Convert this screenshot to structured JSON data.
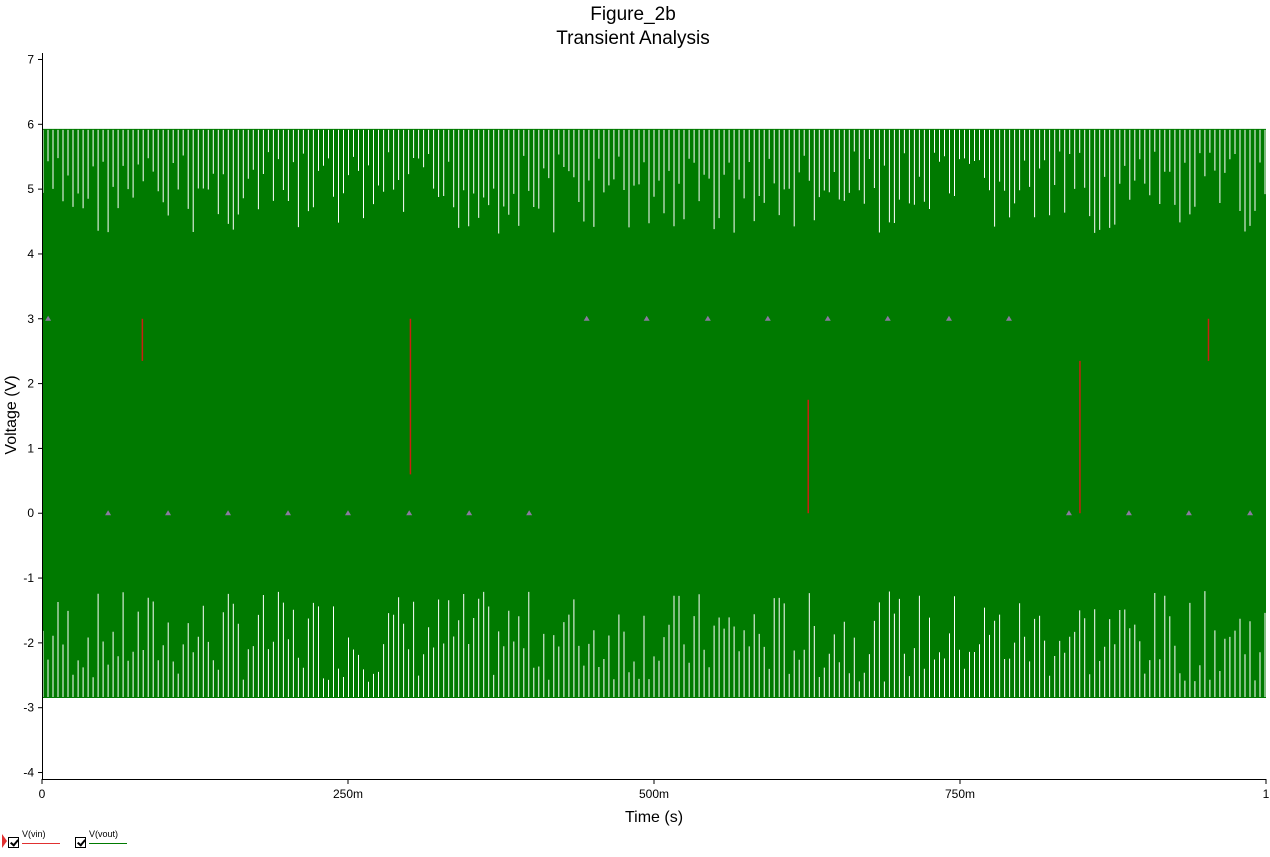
{
  "colors": {
    "vin": "#c8200f",
    "vout": "#007a00",
    "marker": "#8a7aa0"
  },
  "chart_data": {
    "type": "line",
    "title": "Figure_2b",
    "subtitle": "Transient Analysis",
    "xlabel": "Time (s)",
    "ylabel": "Voltage (V)",
    "xlim": [
      0,
      1
    ],
    "ylim": [
      -4.1,
      7.1
    ],
    "x_ticks": [
      {
        "value": 0,
        "label": "0"
      },
      {
        "value": 0.25,
        "label": "250m"
      },
      {
        "value": 0.5,
        "label": "500m"
      },
      {
        "value": 0.75,
        "label": "750m"
      },
      {
        "value": 1,
        "label": "1"
      }
    ],
    "y_ticks": [
      {
        "value": 7,
        "label": "7"
      },
      {
        "value": 6,
        "label": "6"
      },
      {
        "value": 5,
        "label": "5"
      },
      {
        "value": 4,
        "label": "4"
      },
      {
        "value": 3,
        "label": "3"
      },
      {
        "value": 2,
        "label": "2"
      },
      {
        "value": 1,
        "label": "1"
      },
      {
        "value": 0,
        "label": "0"
      },
      {
        "value": -1,
        "label": "-1"
      },
      {
        "value": -2,
        "label": "-2"
      },
      {
        "value": -3,
        "label": "-3"
      },
      {
        "value": -4,
        "label": "-4"
      }
    ],
    "grid": false,
    "legend_position": "bottom-left",
    "series": [
      {
        "name": "V(vin)",
        "color": "#c8200f",
        "description": "square-wave input switching between 0 V and 3 V",
        "levels": [
          0,
          3
        ],
        "visible_segments": [
          {
            "x": 0.082,
            "y0": 2.35,
            "y1": 3.0
          },
          {
            "x": 0.301,
            "y0": 0.6,
            "y1": 3.0
          },
          {
            "x": 0.626,
            "y0": 0.0,
            "y1": 1.75
          },
          {
            "x": 0.848,
            "y0": 0.0,
            "y1": 2.35
          },
          {
            "x": 0.953,
            "y0": 2.35,
            "y1": 3.0
          }
        ],
        "markers_high": [
          0.005,
          0.445,
          0.494,
          0.544,
          0.593,
          0.642,
          0.691,
          0.741,
          0.79
        ],
        "markers_low": [
          0.054,
          0.103,
          0.152,
          0.201,
          0.25,
          0.3,
          0.349,
          0.398,
          0.839,
          0.888,
          0.937,
          0.987
        ]
      },
      {
        "name": "V(vout)",
        "color": "#007a00",
        "description": "high-frequency oscillation filling the band between about -2.85 V and 5.93 V",
        "x": [
          0,
          0.2,
          0.4,
          0.6,
          0.8,
          1.0
        ],
        "upper_envelope": [
          5.93,
          5.93,
          5.93,
          5.93,
          5.93,
          5.93
        ],
        "lower_envelope": [
          -2.85,
          -2.85,
          -2.85,
          -2.85,
          -2.85,
          -2.85
        ]
      }
    ]
  }
}
